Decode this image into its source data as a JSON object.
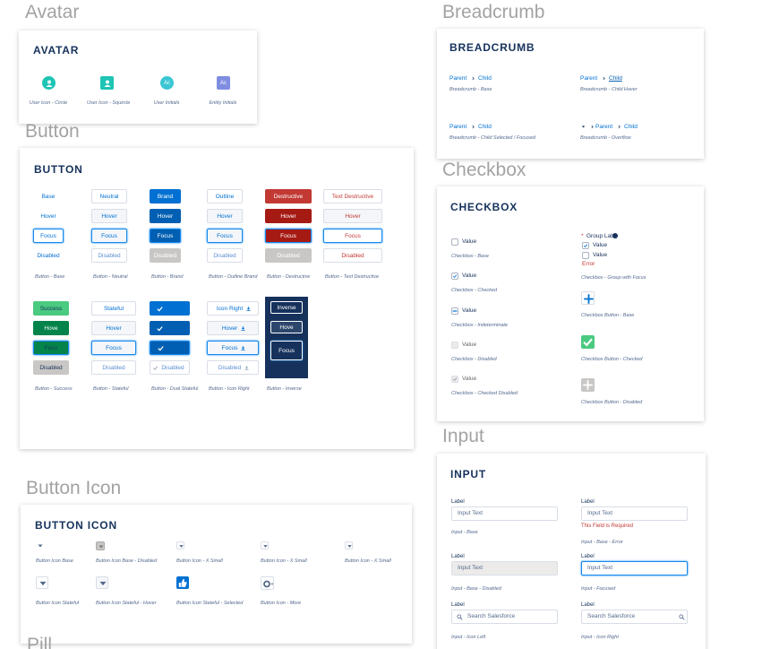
{
  "avatar": {
    "heading": "Avatar",
    "title": "AVATAR",
    "items": [
      {
        "caption": "User Icon - Circle"
      },
      {
        "caption": "User Icon - Squircle"
      },
      {
        "initials": "Ac",
        "caption": "User Initials"
      },
      {
        "initials": "Ac",
        "caption": "Entity Initials"
      }
    ]
  },
  "button": {
    "heading": "Button",
    "title": "BUTTON",
    "groups": [
      {
        "labels": [
          "Base",
          "Hover",
          "Focus",
          "Disabled"
        ],
        "caption": "Button - Base"
      },
      {
        "labels": [
          "Neutral",
          "Hover",
          "Focus",
          "Disabled"
        ],
        "caption": "Button - Neutral"
      },
      {
        "labels": [
          "Brand",
          "Hover",
          "Focus",
          "Disabled"
        ],
        "caption": "Button - Brand"
      },
      {
        "labels": [
          "Outline",
          "Hover",
          "Focus",
          "Disabled"
        ],
        "caption": "Button - Outline Brand"
      },
      {
        "labels": [
          "Destructive",
          "Hover",
          "Focus",
          "Disabled"
        ],
        "caption": "Button - Destructive"
      },
      {
        "labels": [
          "Text Destructive",
          "Hover",
          "Focus",
          "Disabled"
        ],
        "caption": "Button - Text Destructive"
      },
      {
        "labels": [
          "Success",
          "Hove",
          "Focu",
          "Disabled"
        ],
        "caption": "Button - Success"
      },
      {
        "labels": [
          "Stateful",
          "Hover",
          "Focus",
          "Disabled"
        ],
        "caption": "Button - Stateful"
      },
      {
        "labels": [
          "Disabled"
        ],
        "caption": "Button - Dual Stateful"
      },
      {
        "labels": [
          "Icon Right",
          "Hover",
          "Focus",
          "Disabled"
        ],
        "caption": "Button - Icon Right"
      },
      {
        "labels": [
          "Inverse",
          "Hove",
          "Focus"
        ],
        "caption": "Button - Inverse"
      }
    ]
  },
  "button_icon": {
    "heading": "Button Icon",
    "title": "BUTTON ICON",
    "captions": [
      "Button Icon Base",
      "Button Icon Base - Disabled",
      "Button Icon - X Small",
      "Button Icon - X Small",
      "Button Icon - X Small",
      "Button Icon Stateful",
      "Button Icon Stateful - Hover",
      "Button Icon Stateful - Selected",
      "Button Icon - More"
    ]
  },
  "pill": {
    "heading": "Pill"
  },
  "breadcrumb": {
    "heading": "Breadcrumb",
    "title": "BREADCRUMB",
    "items": [
      {
        "parent": "Parent",
        "child": "Child",
        "caption": "Breadcrumb - Base"
      },
      {
        "parent": "Parent",
        "child": "Child",
        "caption": "Breadcrumb - Child Hover"
      },
      {
        "parent": "Parent",
        "child": "Child",
        "caption": "Breadcrumb - Child Selected / Focused"
      },
      {
        "parent": "Parent",
        "child": "Child",
        "caption": "Breadcrumb - Overflow"
      }
    ]
  },
  "checkbox": {
    "heading": "Checkbox",
    "title": "CHECKBOX",
    "items": [
      {
        "label": "Value",
        "caption": "Checkbox - Base"
      },
      {
        "label": "Value",
        "caption": "Checkbox - Checked"
      },
      {
        "label": "Value",
        "caption": "Checkbox - Indeterminate"
      },
      {
        "label": "Value",
        "caption": "Checkbox - Disabled"
      },
      {
        "label": "Value",
        "caption": "Checkbox - Checked Disabled"
      }
    ],
    "group": {
      "required": "*",
      "label": "Group Lab",
      "options": [
        "Value",
        "Value"
      ],
      "error": "Error",
      "caption": "Checkbox - Group with Focus"
    },
    "buttons": [
      {
        "caption": "Checkbox Button - Base"
      },
      {
        "caption": "Checkbox Button - Checked"
      },
      {
        "caption": "Checkbox Button - Disabled"
      }
    ]
  },
  "input": {
    "heading": "Input",
    "title": "INPUT",
    "items": [
      {
        "label": "Label",
        "placeholder": "Input Text",
        "caption": "Input - Base"
      },
      {
        "label": "Label",
        "placeholder": "Input Text",
        "error": "This Field is Required",
        "caption": "Input - Base - Error"
      },
      {
        "label": "Label",
        "placeholder": "Input Text",
        "caption": "Input - Base - Disabled"
      },
      {
        "label": "Label",
        "placeholder": "Input Text",
        "caption": "Input - Focused"
      },
      {
        "label": "Label",
        "placeholder": "Search Salesforce",
        "caption": "Input - Icon Left"
      },
      {
        "label": "Label",
        "placeholder": "Search Salesforce",
        "caption": "Input - Icon Right"
      }
    ]
  }
}
